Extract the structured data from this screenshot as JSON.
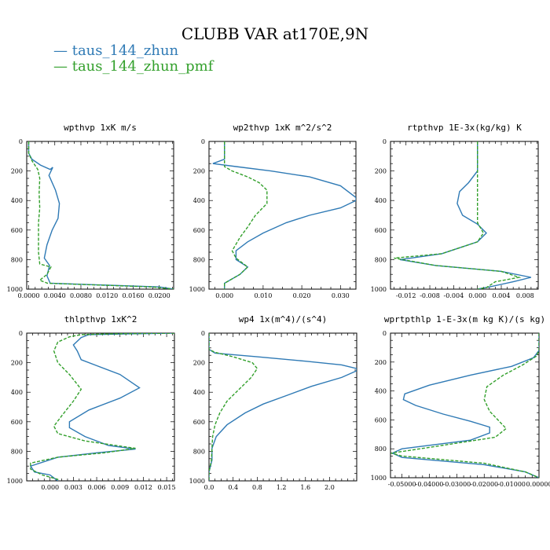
{
  "title": "CLUBB VAR at170E,9N",
  "legend": [
    {
      "name": "— taus_144_zhun",
      "color": "#2f7ab5"
    },
    {
      "name": "— taus_144_zhun_pmf",
      "color": "#33a02c"
    }
  ],
  "chart_data": [
    {
      "type": "line",
      "title": "wpthvp  1xK m/s",
      "xlim": [
        -0.0003,
        0.0222
      ],
      "xticks": [
        0.0,
        0.004,
        0.008,
        0.012,
        0.016,
        0.02
      ],
      "xtick_labels": [
        "0.0000",
        "0.0040",
        "0.0080",
        "0.0120",
        "0.0160",
        "0.0200"
      ],
      "ylim": [
        1000,
        0
      ],
      "yticks": [
        0,
        200,
        400,
        600,
        800,
        1000
      ],
      "series": [
        {
          "color": "#2f7ab5",
          "points": [
            [
              0.0,
              0
            ],
            [
              0.0,
              80
            ],
            [
              0.0005,
              120
            ],
            [
              0.0018,
              160
            ],
            [
              0.0033,
              190
            ],
            [
              0.0037,
              175
            ],
            [
              0.0031,
              230
            ],
            [
              0.0041,
              330
            ],
            [
              0.0047,
              420
            ],
            [
              0.0045,
              520
            ],
            [
              0.0036,
              600
            ],
            [
              0.0028,
              700
            ],
            [
              0.0024,
              790
            ],
            [
              0.0032,
              840
            ],
            [
              0.0028,
              910
            ],
            [
              0.0033,
              960
            ],
            [
              0.02,
              985
            ],
            [
              0.0222,
              1000
            ]
          ]
        },
        {
          "color": "#33a02c",
          "dash": true,
          "points": [
            [
              0.0,
              0
            ],
            [
              0.0,
              80
            ],
            [
              0.0005,
              130
            ],
            [
              0.0014,
              190
            ],
            [
              0.0017,
              250
            ],
            [
              0.0016,
              350
            ],
            [
              0.0017,
              450
            ],
            [
              0.0015,
              550
            ],
            [
              0.0015,
              650
            ],
            [
              0.0015,
              750
            ],
            [
              0.0017,
              830
            ],
            [
              0.0034,
              850
            ],
            [
              0.0028,
              900
            ],
            [
              0.0017,
              940
            ],
            [
              0.0029,
              960
            ],
            [
              0.019,
              985
            ],
            [
              0.0222,
              1000
            ]
          ]
        }
      ]
    },
    {
      "type": "line",
      "title": "wp2thvp  1xK m^2/s^2",
      "xlim": [
        -0.004,
        0.034
      ],
      "xticks": [
        0.0,
        0.01,
        0.02,
        0.03
      ],
      "xtick_labels": [
        "0.000",
        "0.010",
        "0.020",
        "0.030"
      ],
      "ylim": [
        1000,
        0
      ],
      "yticks": [
        0,
        200,
        400,
        600,
        800,
        1000
      ],
      "series": [
        {
          "color": "#2f7ab5",
          "points": [
            [
              0.0,
              0
            ],
            [
              0.0,
              120
            ],
            [
              -0.003,
              150
            ],
            [
              0.003,
              170
            ],
            [
              0.012,
              200
            ],
            [
              0.022,
              240
            ],
            [
              0.03,
              300
            ],
            [
              0.034,
              380
            ],
            [
              0.034,
              400
            ],
            [
              0.03,
              450
            ],
            [
              0.022,
              500
            ],
            [
              0.016,
              550
            ],
            [
              0.01,
              620
            ],
            [
              0.006,
              680
            ],
            [
              0.003,
              740
            ],
            [
              0.003,
              800
            ],
            [
              0.006,
              850
            ],
            [
              0.004,
              900
            ],
            [
              0.0,
              960
            ],
            [
              0.0,
              1000
            ]
          ]
        },
        {
          "color": "#33a02c",
          "dash": true,
          "points": [
            [
              0.0,
              0
            ],
            [
              0.0,
              120
            ],
            [
              0.0,
              170
            ],
            [
              0.002,
              200
            ],
            [
              0.006,
              240
            ],
            [
              0.009,
              280
            ],
            [
              0.011,
              330
            ],
            [
              0.011,
              420
            ],
            [
              0.008,
              500
            ],
            [
              0.006,
              580
            ],
            [
              0.004,
              650
            ],
            [
              0.002,
              740
            ],
            [
              0.003,
              790
            ],
            [
              0.006,
              850
            ],
            [
              0.004,
              900
            ],
            [
              0.0,
              960
            ],
            [
              0.0,
              1000
            ]
          ]
        }
      ]
    },
    {
      "type": "line",
      "title": "rtpthvp  1E-3x(kg/kg) K",
      "xlim": [
        -0.0146,
        0.0102
      ],
      "xticks": [
        -0.012,
        -0.008,
        -0.004,
        0.0,
        0.004,
        0.008
      ],
      "xtick_labels": [
        "-0.012",
        "-0.008",
        "-0.004",
        "0.000",
        "0.004",
        "0.008"
      ],
      "ylim": [
        1000,
        0
      ],
      "yticks": [
        0,
        200,
        400,
        600,
        800,
        1000
      ],
      "series": [
        {
          "color": "#2f7ab5",
          "points": [
            [
              0.0,
              0
            ],
            [
              0.0,
              200
            ],
            [
              -0.0015,
              280
            ],
            [
              -0.003,
              340
            ],
            [
              -0.0034,
              420
            ],
            [
              -0.0025,
              500
            ],
            [
              0.0,
              560
            ],
            [
              0.0015,
              620
            ],
            [
              0.0,
              680
            ],
            [
              -0.006,
              760
            ],
            [
              -0.013,
              800
            ],
            [
              -0.007,
              840
            ],
            [
              0.004,
              880
            ],
            [
              0.009,
              920
            ],
            [
              0.006,
              950
            ],
            [
              0.002,
              985
            ],
            [
              0.0,
              1000
            ]
          ]
        },
        {
          "color": "#33a02c",
          "dash": true,
          "points": [
            [
              0.0,
              0
            ],
            [
              0.0,
              200
            ],
            [
              0.0,
              400
            ],
            [
              0.0,
              500
            ],
            [
              0.0,
              550
            ],
            [
              0.001,
              620
            ],
            [
              0.0,
              680
            ],
            [
              -0.006,
              760
            ],
            [
              -0.014,
              790
            ],
            [
              -0.007,
              840
            ],
            [
              0.004,
              880
            ],
            [
              0.007,
              920
            ],
            [
              0.003,
              950
            ],
            [
              0.0015,
              990
            ],
            [
              0.0,
              1000
            ]
          ]
        }
      ]
    },
    {
      "type": "line",
      "title": "thlpthvp  1xK^2",
      "xlim": [
        -0.003,
        0.016
      ],
      "xticks": [
        0.0,
        0.003,
        0.006,
        0.009,
        0.012,
        0.015
      ],
      "xtick_labels": [
        "0.000",
        "0.003",
        "0.006",
        "0.009",
        "0.012",
        "0.015"
      ],
      "ylim": [
        1000,
        0
      ],
      "yticks": [
        0,
        200,
        400,
        600,
        800,
        1000
      ],
      "series": [
        {
          "color": "#2f7ab5",
          "points": [
            [
              0.016,
              0
            ],
            [
              0.01,
              5
            ],
            [
              0.005,
              10
            ],
            [
              0.004,
              30
            ],
            [
              0.003,
              80
            ],
            [
              0.0035,
              120
            ],
            [
              0.004,
              180
            ],
            [
              0.006,
              220
            ],
            [
              0.009,
              280
            ],
            [
              0.0115,
              370
            ],
            [
              0.009,
              440
            ],
            [
              0.005,
              520
            ],
            [
              0.0025,
              600
            ],
            [
              0.0025,
              640
            ],
            [
              0.0045,
              700
            ],
            [
              0.0075,
              760
            ],
            [
              0.011,
              785
            ],
            [
              0.006,
              810
            ],
            [
              0.001,
              840
            ],
            [
              -0.0025,
              900
            ],
            [
              -0.002,
              940
            ],
            [
              0.0,
              960
            ],
            [
              0.001,
              1000
            ]
          ]
        },
        {
          "color": "#33a02c",
          "dash": true,
          "points": [
            [
              0.016,
              0
            ],
            [
              0.008,
              5
            ],
            [
              0.004,
              10
            ],
            [
              0.0025,
              25
            ],
            [
              0.001,
              60
            ],
            [
              0.0005,
              120
            ],
            [
              0.001,
              200
            ],
            [
              0.0025,
              280
            ],
            [
              0.004,
              380
            ],
            [
              0.003,
              460
            ],
            [
              0.0015,
              560
            ],
            [
              0.0005,
              630
            ],
            [
              0.001,
              680
            ],
            [
              0.0045,
              730
            ],
            [
              0.011,
              780
            ],
            [
              0.007,
              810
            ],
            [
              0.001,
              840
            ],
            [
              -0.0025,
              880
            ],
            [
              -0.0025,
              920
            ],
            [
              -0.001,
              960
            ],
            [
              0.001,
              990
            ],
            [
              0.001,
              1000
            ]
          ]
        }
      ]
    },
    {
      "type": "line",
      "title": "wp4  1x(m^4)/(s^4)",
      "xlim": [
        0.0,
        2.45
      ],
      "xticks": [
        0.0,
        0.4,
        0.8,
        1.2,
        1.6,
        2.0
      ],
      "xtick_labels": [
        "0.0",
        "0.4",
        "0.8",
        "1.2",
        "1.6",
        "2.0"
      ],
      "ylim": [
        1000,
        0
      ],
      "yticks": [
        0,
        200,
        400,
        600,
        800,
        1000
      ],
      "series": [
        {
          "color": "#2f7ab5",
          "points": [
            [
              0.0,
              0
            ],
            [
              0.0,
              110
            ],
            [
              0.1,
              135
            ],
            [
              0.8,
              160
            ],
            [
              1.6,
              190
            ],
            [
              2.2,
              215
            ],
            [
              2.45,
              240
            ],
            [
              2.45,
              255
            ],
            [
              2.2,
              300
            ],
            [
              1.7,
              360
            ],
            [
              1.3,
              420
            ],
            [
              0.9,
              480
            ],
            [
              0.6,
              540
            ],
            [
              0.3,
              620
            ],
            [
              0.12,
              700
            ],
            [
              0.05,
              780
            ],
            [
              0.05,
              860
            ],
            [
              0.0,
              940
            ],
            [
              0.0,
              1000
            ]
          ]
        },
        {
          "color": "#33a02c",
          "dash": true,
          "points": [
            [
              0.0,
              0
            ],
            [
              0.0,
              110
            ],
            [
              0.1,
              130
            ],
            [
              0.4,
              160
            ],
            [
              0.72,
              200
            ],
            [
              0.8,
              240
            ],
            [
              0.7,
              300
            ],
            [
              0.5,
              380
            ],
            [
              0.3,
              460
            ],
            [
              0.18,
              540
            ],
            [
              0.1,
              620
            ],
            [
              0.06,
              700
            ],
            [
              0.05,
              780
            ],
            [
              0.04,
              860
            ],
            [
              0.0,
              940
            ],
            [
              0.0,
              1000
            ]
          ]
        }
      ]
    },
    {
      "type": "line",
      "title": "wprtpthlp  1-E-3x(m kg K)/(s kg)",
      "xlim": [
        -0.0542,
        0.0
      ],
      "xticks": [
        -0.05,
        -0.04,
        -0.03,
        -0.02,
        -0.01,
        0.0
      ],
      "xtick_labels": [
        "-0.05000",
        "-0.04000",
        "-0.03000",
        "-0.02000",
        "-0.01000",
        "0.00000"
      ],
      "ylim": [
        1000,
        0
      ],
      "yticks": [
        0,
        200,
        400,
        600,
        800,
        1000
      ],
      "series": [
        {
          "color": "#2f7ab5",
          "points": [
            [
              0.0,
              0
            ],
            [
              0.0,
              120
            ],
            [
              -0.002,
              170
            ],
            [
              -0.01,
              230
            ],
            [
              -0.025,
              290
            ],
            [
              -0.04,
              360
            ],
            [
              -0.049,
              420
            ],
            [
              -0.0495,
              460
            ],
            [
              -0.045,
              500
            ],
            [
              -0.035,
              560
            ],
            [
              -0.025,
              610
            ],
            [
              -0.018,
              650
            ],
            [
              -0.018,
              690
            ],
            [
              -0.025,
              740
            ],
            [
              -0.05,
              800
            ],
            [
              -0.0535,
              830
            ],
            [
              -0.05,
              860
            ],
            [
              -0.02,
              910
            ],
            [
              -0.005,
              960
            ],
            [
              0.0,
              1000
            ]
          ]
        },
        {
          "color": "#33a02c",
          "dash": true,
          "points": [
            [
              0.0,
              0
            ],
            [
              0.0,
              120
            ],
            [
              -0.001,
              160
            ],
            [
              -0.006,
              220
            ],
            [
              -0.013,
              290
            ],
            [
              -0.019,
              370
            ],
            [
              -0.02,
              460
            ],
            [
              -0.018,
              540
            ],
            [
              -0.014,
              620
            ],
            [
              -0.012,
              660
            ],
            [
              -0.016,
              720
            ],
            [
              -0.04,
              790
            ],
            [
              -0.054,
              830
            ],
            [
              -0.05,
              850
            ],
            [
              -0.02,
              900
            ],
            [
              -0.005,
              960
            ],
            [
              0.0,
              1000
            ]
          ]
        }
      ]
    }
  ]
}
